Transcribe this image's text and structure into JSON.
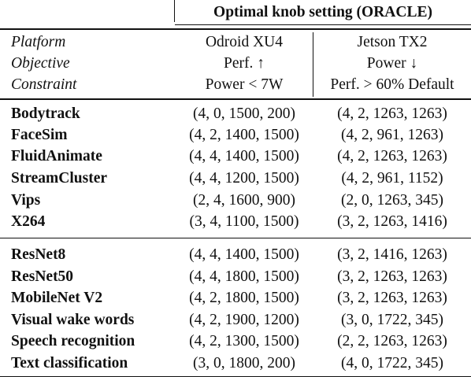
{
  "table": {
    "title": "Optimal knob setting (ORACLE)",
    "header_rows": [
      {
        "label": "Platform",
        "col1": "Odroid XU4",
        "col2": "Jetson TX2"
      },
      {
        "label": "Objective",
        "col1": "Perf. ↑",
        "col2": "Power ↓"
      },
      {
        "label": "Constraint",
        "col1": "Power < 7W",
        "col2": "Perf. > 60% Default"
      }
    ],
    "group1": [
      {
        "name": "Bodytrack",
        "col1": "(4, 0, 1500, 200)",
        "col2": "(4, 2, 1263, 1263)"
      },
      {
        "name": "FaceSim",
        "col1": "(4, 2, 1400, 1500)",
        "col2": "(4, 2, 961, 1263)"
      },
      {
        "name": "FluidAnimate",
        "col1": "(4, 4, 1400, 1500)",
        "col2": "(4, 2, 1263, 1263)"
      },
      {
        "name": "StreamCluster",
        "col1": "(4, 4, 1200, 1500)",
        "col2": "(4, 2, 961, 1152)"
      },
      {
        "name": "Vips",
        "col1": "(2, 4, 1600, 900)",
        "col2": "(2, 0, 1263, 345)"
      },
      {
        "name": "X264",
        "col1": "(3, 4, 1100, 1500)",
        "col2": "(3, 2, 1263, 1416)"
      }
    ],
    "group2": [
      {
        "name": "ResNet8",
        "col1": "(4, 4, 1400, 1500)",
        "col2": "(3, 2, 1416, 1263)"
      },
      {
        "name": "ResNet50",
        "col1": "(4, 4, 1800, 1500)",
        "col2": "(3, 2, 1263, 1263)"
      },
      {
        "name": "MobileNet V2",
        "col1": "(4, 2, 1800, 1500)",
        "col2": "(3, 2, 1263, 1263)"
      },
      {
        "name": "Visual wake words",
        "col1": "(4, 2, 1900, 1200)",
        "col2": "(3, 0, 1722, 345)"
      },
      {
        "name": "Speech recognition",
        "col1": "(4, 2, 1300, 1500)",
        "col2": "(2, 2, 1263, 1263)"
      },
      {
        "name": "Text classification",
        "col1": "(3, 0, 1800, 200)",
        "col2": "(4, 0, 1722, 345)"
      }
    ]
  }
}
